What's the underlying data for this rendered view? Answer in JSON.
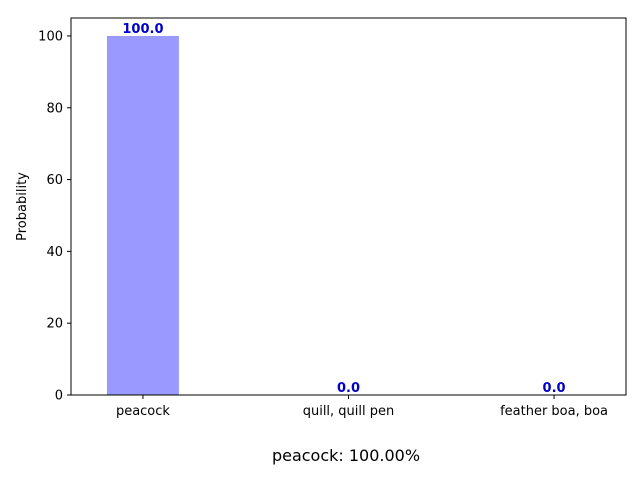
{
  "chart_data": {
    "type": "bar",
    "categories": [
      "peacock",
      "quill, quill pen",
      "feather boa, boa"
    ],
    "values": [
      100.0,
      0.0,
      0.0
    ],
    "value_labels": [
      "100.0",
      "0.0",
      "0.0"
    ],
    "xlabel": "",
    "ylabel": "Probability",
    "ylim": [
      0,
      105
    ],
    "yticks": [
      0,
      20,
      40,
      60,
      80,
      100
    ],
    "grid": false,
    "bar_color": "#9999ff",
    "label_color": "#0000cc"
  },
  "caption": "peacock: 100.00%"
}
